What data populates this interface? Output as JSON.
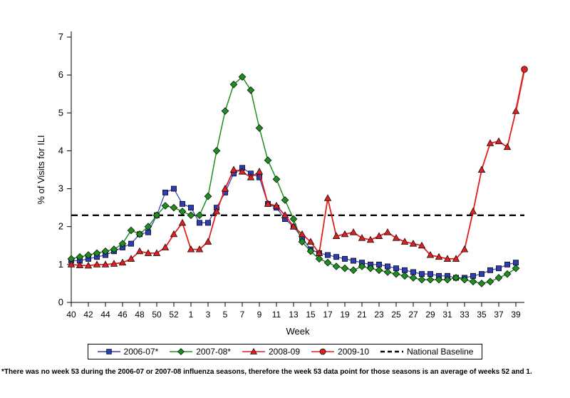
{
  "chart_data": {
    "type": "line",
    "title": "",
    "xlabel": "Week",
    "ylabel": "% of Visits for ILI",
    "ylim": [
      0,
      7
    ],
    "yticks": [
      0,
      1,
      2,
      3,
      4,
      5,
      6,
      7
    ],
    "grid": false,
    "legend_position": "bottom",
    "categories": [
      "40",
      "",
      "42",
      "",
      "44",
      "",
      "46",
      "",
      "48",
      "",
      "50",
      "",
      "52",
      "",
      "1",
      "",
      "3",
      "",
      "5",
      "",
      "7",
      "",
      "9",
      "",
      "11",
      "",
      "13",
      "",
      "15",
      "",
      "17",
      "",
      "19",
      "",
      "21",
      "",
      "23",
      "",
      "25",
      "",
      "27",
      "",
      "29",
      "",
      "31",
      "",
      "33",
      "",
      "35",
      "",
      "37",
      "",
      "39",
      ""
    ],
    "baseline": {
      "label": "National Baseline",
      "value": 2.3,
      "color": "#000000"
    },
    "series": [
      {
        "name": "2006-07*",
        "marker": "square",
        "color": "#2e3db3",
        "line_width": 1.2,
        "values": [
          1.1,
          1.1,
          1.15,
          1.2,
          1.25,
          1.35,
          1.45,
          1.55,
          1.8,
          1.85,
          2.3,
          2.9,
          3.0,
          2.6,
          2.5,
          2.1,
          2.1,
          2.5,
          2.9,
          3.4,
          3.55,
          3.4,
          3.3,
          2.6,
          2.5,
          2.2,
          2.0,
          1.7,
          1.4,
          1.3,
          1.25,
          1.2,
          1.15,
          1.1,
          1.05,
          1.0,
          1.0,
          0.95,
          0.9,
          0.85,
          0.8,
          0.75,
          0.75,
          0.7,
          0.7,
          0.65,
          0.65,
          0.7,
          0.75,
          0.85,
          0.9,
          1.0,
          1.05,
          null
        ]
      },
      {
        "name": "2007-08*",
        "marker": "diamond",
        "color": "#1e8f1e",
        "line_width": 1.5,
        "values": [
          1.15,
          1.2,
          1.25,
          1.3,
          1.35,
          1.4,
          1.55,
          1.9,
          1.8,
          2.0,
          2.3,
          2.55,
          2.5,
          2.4,
          2.3,
          2.3,
          2.8,
          4.0,
          5.05,
          5.75,
          5.95,
          5.6,
          4.6,
          3.75,
          3.25,
          2.7,
          2.2,
          1.6,
          1.35,
          1.15,
          1.05,
          0.95,
          0.9,
          0.85,
          0.95,
          0.9,
          0.85,
          0.8,
          0.75,
          0.7,
          0.65,
          0.6,
          0.6,
          0.6,
          0.6,
          0.65,
          0.6,
          0.55,
          0.5,
          0.55,
          0.65,
          0.75,
          0.9,
          null
        ]
      },
      {
        "name": "2008-09",
        "marker": "triangle",
        "color": "#e01f1f",
        "line_width": 1.8,
        "values": [
          1.0,
          0.98,
          0.97,
          1.0,
          1.0,
          1.02,
          1.05,
          1.15,
          1.35,
          1.3,
          1.3,
          1.45,
          1.8,
          2.1,
          1.4,
          1.4,
          1.6,
          2.4,
          3.0,
          3.5,
          3.45,
          3.3,
          3.45,
          2.6,
          2.55,
          2.3,
          2.0,
          1.8,
          1.6,
          1.3,
          2.75,
          1.75,
          1.8,
          1.85,
          1.7,
          1.65,
          1.75,
          1.85,
          1.7,
          1.6,
          1.55,
          1.5,
          1.25,
          1.2,
          1.15,
          1.15,
          1.4,
          2.4,
          3.5,
          4.2,
          4.25,
          4.1,
          5.05,
          null
        ]
      },
      {
        "name": "2009-10",
        "marker": "circle",
        "color": "#e01f1f",
        "line_width": 2.4,
        "marker_indices": [
          53
        ],
        "values": [
          null,
          null,
          null,
          null,
          null,
          null,
          null,
          null,
          null,
          null,
          null,
          null,
          null,
          null,
          null,
          null,
          null,
          null,
          null,
          null,
          null,
          null,
          null,
          null,
          null,
          null,
          null,
          null,
          null,
          null,
          null,
          null,
          null,
          null,
          null,
          null,
          null,
          null,
          null,
          null,
          null,
          null,
          null,
          null,
          null,
          null,
          null,
          null,
          null,
          null,
          null,
          null,
          5.05,
          6.15
        ]
      }
    ]
  },
  "footnote": "*There was no week 53 during the 2006-07 or 2007-08 influenza seasons, therefore the week 53 data point for those seasons is an average of weeks 52 and 1."
}
